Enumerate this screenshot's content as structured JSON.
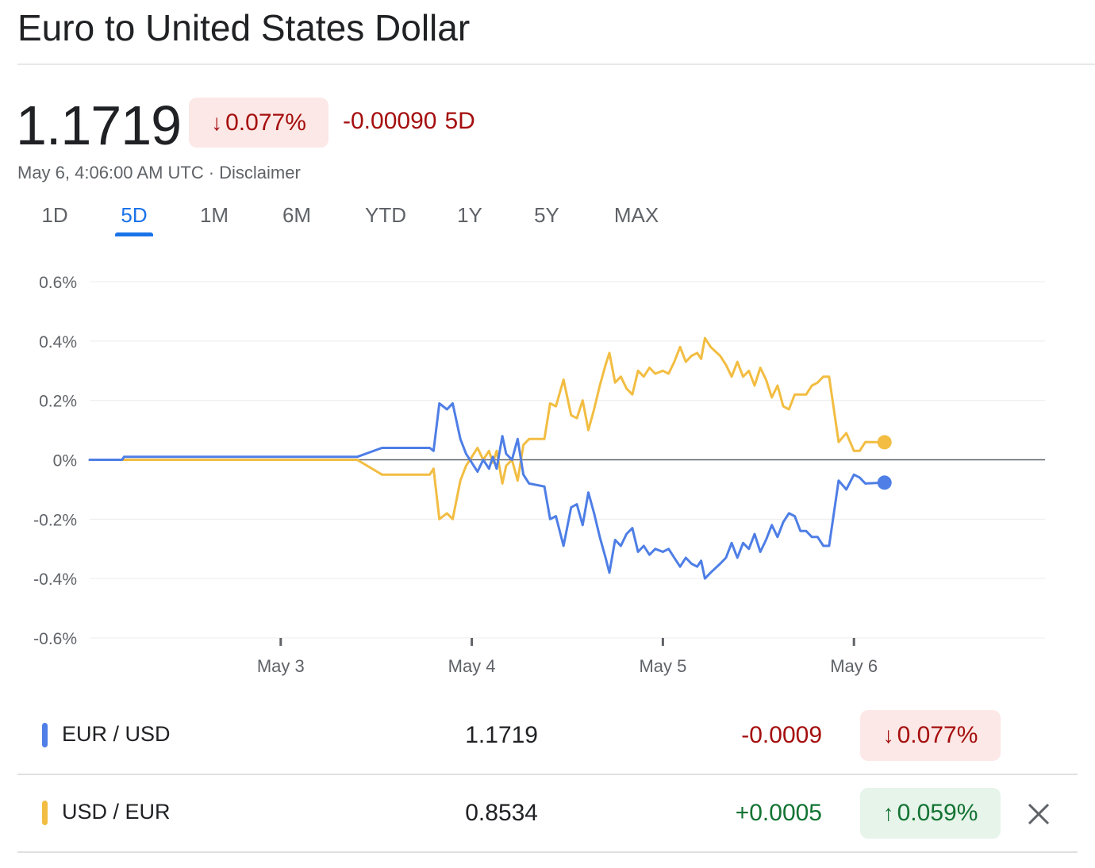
{
  "header": {
    "title": "Euro to United States Dollar",
    "price": "1.1719",
    "pct_change": "0.077%",
    "abs_change": "-0.00090",
    "period": "5D",
    "timestamp": "May 6, 4:06:00 AM UTC",
    "separator": "·",
    "disclaimer": "Disclaimer"
  },
  "tabs": [
    {
      "label": "1D",
      "active": false
    },
    {
      "label": "5D",
      "active": true
    },
    {
      "label": "1M",
      "active": false
    },
    {
      "label": "6M",
      "active": false
    },
    {
      "label": "YTD",
      "active": false
    },
    {
      "label": "1Y",
      "active": false
    },
    {
      "label": "5Y",
      "active": false
    },
    {
      "label": "MAX",
      "active": false
    }
  ],
  "legend": [
    {
      "pair": "EUR / USD",
      "rate": "1.1719",
      "delta": "-0.0009",
      "pct": "0.077%",
      "direction": "down",
      "color": "#4e7ee6"
    },
    {
      "pair": "USD / EUR",
      "rate": "0.8534",
      "delta": "+0.0005",
      "pct": "0.059%",
      "direction": "up",
      "color": "#f2bd42"
    }
  ],
  "icons": {
    "down": "arrow-down-icon",
    "up": "arrow-up-icon",
    "close": "close-icon"
  },
  "colors": {
    "negative": "#a50e0e",
    "positive": "#137333",
    "accent": "#1a73e8"
  },
  "chart_data": {
    "type": "line",
    "yticks": [
      "0.6%",
      "0.4%",
      "0.2%",
      "0%",
      "-0.2%",
      "-0.4%",
      "-0.6%"
    ],
    "ylim": [
      -0.6,
      0.6
    ],
    "xlim": [
      2.0,
      7.0
    ],
    "xticks": [
      {
        "label": "May 3",
        "value": 3
      },
      {
        "label": "May 4",
        "value": 4
      },
      {
        "label": "May 5",
        "value": 5
      },
      {
        "label": "May 6",
        "value": 6
      }
    ],
    "grid": true,
    "series": [
      {
        "name": "EUR / USD",
        "color": "#4e7ee6",
        "points": [
          [
            2.0,
            0.0
          ],
          [
            2.17,
            0.0
          ],
          [
            2.18,
            0.01
          ],
          [
            3.4,
            0.01
          ],
          [
            3.53,
            0.04
          ],
          [
            3.78,
            0.04
          ],
          [
            3.8,
            0.03
          ],
          [
            3.83,
            0.19
          ],
          [
            3.87,
            0.17
          ],
          [
            3.9,
            0.19
          ],
          [
            3.94,
            0.07
          ],
          [
            3.97,
            0.02
          ],
          [
            4.0,
            -0.01
          ],
          [
            4.03,
            -0.04
          ],
          [
            4.06,
            0.0
          ],
          [
            4.09,
            -0.03
          ],
          [
            4.11,
            0.01
          ],
          [
            4.13,
            -0.03
          ],
          [
            4.16,
            0.08
          ],
          [
            4.18,
            0.02
          ],
          [
            4.21,
            0.0
          ],
          [
            4.24,
            0.07
          ],
          [
            4.27,
            -0.05
          ],
          [
            4.3,
            -0.08
          ],
          [
            4.38,
            -0.09
          ],
          [
            4.41,
            -0.2
          ],
          [
            4.44,
            -0.19
          ],
          [
            4.48,
            -0.29
          ],
          [
            4.52,
            -0.16
          ],
          [
            4.55,
            -0.15
          ],
          [
            4.58,
            -0.22
          ],
          [
            4.61,
            -0.11
          ],
          [
            4.64,
            -0.18
          ],
          [
            4.67,
            -0.26
          ],
          [
            4.7,
            -0.33
          ],
          [
            4.72,
            -0.38
          ],
          [
            4.75,
            -0.27
          ],
          [
            4.78,
            -0.29
          ],
          [
            4.81,
            -0.25
          ],
          [
            4.84,
            -0.23
          ],
          [
            4.87,
            -0.31
          ],
          [
            4.9,
            -0.29
          ],
          [
            4.93,
            -0.32
          ],
          [
            4.96,
            -0.3
          ],
          [
            5.0,
            -0.31
          ],
          [
            5.03,
            -0.3
          ],
          [
            5.06,
            -0.33
          ],
          [
            5.09,
            -0.36
          ],
          [
            5.12,
            -0.33
          ],
          [
            5.15,
            -0.35
          ],
          [
            5.18,
            -0.36
          ],
          [
            5.2,
            -0.34
          ],
          [
            5.22,
            -0.4
          ],
          [
            5.25,
            -0.38
          ],
          [
            5.3,
            -0.35
          ],
          [
            5.33,
            -0.33
          ],
          [
            5.36,
            -0.28
          ],
          [
            5.39,
            -0.33
          ],
          [
            5.42,
            -0.28
          ],
          [
            5.45,
            -0.3
          ],
          [
            5.48,
            -0.25
          ],
          [
            5.51,
            -0.31
          ],
          [
            5.54,
            -0.27
          ],
          [
            5.57,
            -0.22
          ],
          [
            5.6,
            -0.26
          ],
          [
            5.63,
            -0.21
          ],
          [
            5.66,
            -0.18
          ],
          [
            5.69,
            -0.19
          ],
          [
            5.72,
            -0.24
          ],
          [
            5.75,
            -0.24
          ],
          [
            5.78,
            -0.26
          ],
          [
            5.81,
            -0.26
          ],
          [
            5.84,
            -0.29
          ],
          [
            5.87,
            -0.29
          ],
          [
            5.92,
            -0.07
          ],
          [
            5.96,
            -0.1
          ],
          [
            6.0,
            -0.05
          ],
          [
            6.03,
            -0.06
          ],
          [
            6.06,
            -0.08
          ],
          [
            6.16,
            -0.077
          ]
        ]
      },
      {
        "name": "USD / EUR",
        "color": "#f2bd42",
        "points": [
          [
            2.0,
            0.0
          ],
          [
            3.4,
            0.0
          ],
          [
            3.53,
            -0.05
          ],
          [
            3.78,
            -0.05
          ],
          [
            3.8,
            -0.03
          ],
          [
            3.83,
            -0.2
          ],
          [
            3.87,
            -0.18
          ],
          [
            3.9,
            -0.2
          ],
          [
            3.94,
            -0.07
          ],
          [
            3.97,
            -0.02
          ],
          [
            4.0,
            0.01
          ],
          [
            4.03,
            0.04
          ],
          [
            4.06,
            0.0
          ],
          [
            4.09,
            0.03
          ],
          [
            4.11,
            -0.01
          ],
          [
            4.13,
            0.03
          ],
          [
            4.16,
            -0.08
          ],
          [
            4.18,
            -0.02
          ],
          [
            4.21,
            0.0
          ],
          [
            4.24,
            -0.07
          ],
          [
            4.27,
            0.05
          ],
          [
            4.3,
            0.07
          ],
          [
            4.38,
            0.07
          ],
          [
            4.41,
            0.19
          ],
          [
            4.44,
            0.18
          ],
          [
            4.48,
            0.27
          ],
          [
            4.52,
            0.15
          ],
          [
            4.55,
            0.14
          ],
          [
            4.58,
            0.2
          ],
          [
            4.61,
            0.1
          ],
          [
            4.64,
            0.17
          ],
          [
            4.67,
            0.25
          ],
          [
            4.7,
            0.32
          ],
          [
            4.72,
            0.36
          ],
          [
            4.75,
            0.26
          ],
          [
            4.78,
            0.28
          ],
          [
            4.81,
            0.24
          ],
          [
            4.84,
            0.22
          ],
          [
            4.87,
            0.3
          ],
          [
            4.9,
            0.28
          ],
          [
            4.93,
            0.31
          ],
          [
            4.96,
            0.29
          ],
          [
            5.0,
            0.3
          ],
          [
            5.03,
            0.29
          ],
          [
            5.06,
            0.33
          ],
          [
            5.09,
            0.38
          ],
          [
            5.12,
            0.33
          ],
          [
            5.15,
            0.35
          ],
          [
            5.18,
            0.36
          ],
          [
            5.2,
            0.34
          ],
          [
            5.22,
            0.41
          ],
          [
            5.25,
            0.38
          ],
          [
            5.3,
            0.35
          ],
          [
            5.33,
            0.32
          ],
          [
            5.36,
            0.28
          ],
          [
            5.39,
            0.33
          ],
          [
            5.42,
            0.28
          ],
          [
            5.45,
            0.3
          ],
          [
            5.48,
            0.25
          ],
          [
            5.51,
            0.31
          ],
          [
            5.54,
            0.27
          ],
          [
            5.57,
            0.21
          ],
          [
            5.6,
            0.25
          ],
          [
            5.63,
            0.18
          ],
          [
            5.66,
            0.17
          ],
          [
            5.69,
            0.22
          ],
          [
            5.72,
            0.22
          ],
          [
            5.75,
            0.22
          ],
          [
            5.78,
            0.25
          ],
          [
            5.81,
            0.26
          ],
          [
            5.84,
            0.28
          ],
          [
            5.87,
            0.28
          ],
          [
            5.92,
            0.06
          ],
          [
            5.96,
            0.09
          ],
          [
            6.0,
            0.03
          ],
          [
            6.03,
            0.03
          ],
          [
            6.06,
            0.06
          ],
          [
            6.16,
            0.059
          ]
        ]
      }
    ]
  }
}
